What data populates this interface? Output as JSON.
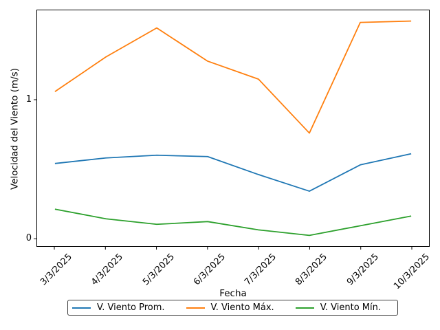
{
  "chart_data": {
    "type": "line",
    "title": "",
    "xlabel": "Fecha",
    "ylabel": "Velocidad del Viento (m/s)",
    "categories": [
      "3/3/2025",
      "4/3/2025",
      "5/3/2025",
      "6/3/2025",
      "7/3/2025",
      "8/3/2025",
      "9/3/2025",
      "10/3/2025"
    ],
    "series": [
      {
        "name": "V. Viento Prom.",
        "color": "#1f77b4",
        "values": [
          0.54,
          0.58,
          0.6,
          0.59,
          0.46,
          0.34,
          0.53,
          0.61
        ]
      },
      {
        "name": "V. Viento Máx.",
        "color": "#ff7f0e",
        "values": [
          1.06,
          1.31,
          1.52,
          1.28,
          1.15,
          0.76,
          1.56,
          1.57
        ]
      },
      {
        "name": "V. Viento Mín.",
        "color": "#2ca02c",
        "values": [
          0.21,
          0.14,
          0.1,
          0.12,
          0.06,
          0.02,
          0.09,
          0.16
        ]
      }
    ],
    "yticks": [
      0,
      1
    ],
    "ylim": [
      -0.0575,
      1.6475
    ],
    "x_index_margin": 0.35,
    "grid": false,
    "legend_position": "bottom-center",
    "axis_color": "#000000",
    "background_color": "#ffffff"
  }
}
